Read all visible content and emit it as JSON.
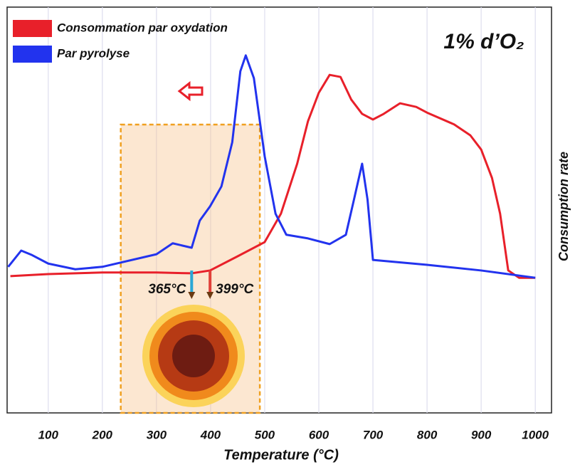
{
  "chart_data": {
    "type": "line",
    "title": "1% d’O₂",
    "x_label": "Temperature (°C)",
    "y_label": "Consumption rate",
    "xlim": [
      24,
      1030
    ],
    "xticks": [
      100,
      200,
      300,
      400,
      500,
      600,
      700,
      800,
      900,
      1000
    ],
    "ylim": [
      0,
      100
    ],
    "grid": true,
    "legend": "top-left",
    "highlight_range": [
      234,
      491
    ],
    "annotations": [
      {
        "text": "365°C",
        "x": 365,
        "color": "#2aa7d6"
      },
      {
        "text": "399°C",
        "x": 399,
        "color": "#e0403a"
      }
    ],
    "series": [
      {
        "name": "Consommation par oxydation",
        "color": "#e8202a",
        "x": [
          30,
          100,
          200,
          300,
          365,
          399,
          450,
          500,
          530,
          560,
          580,
          600,
          620,
          640,
          660,
          680,
          700,
          720,
          750,
          780,
          800,
          850,
          880,
          900,
          920,
          935,
          950,
          970,
          1000
        ],
        "values": [
          33.7,
          34.2,
          34.6,
          34.6,
          34.4,
          35.1,
          38.6,
          42.1,
          49.1,
          61.4,
          71.9,
          78.9,
          83.3,
          82.8,
          77.2,
          73.7,
          72.3,
          73.7,
          76.3,
          75.4,
          74.0,
          71.1,
          68.4,
          64.9,
          57.9,
          49.1,
          35.1,
          33.3,
          33.3
        ]
      },
      {
        "name": "Par pyrolyse",
        "color": "#2233ee",
        "x": [
          26,
          50,
          70,
          100,
          150,
          200,
          300,
          330,
          365,
          380,
          399,
          420,
          440,
          455,
          465,
          480,
          500,
          520,
          540,
          580,
          620,
          650,
          665,
          680,
          690,
          700,
          800,
          900,
          1000
        ],
        "values": [
          36.0,
          40.0,
          38.9,
          36.8,
          35.4,
          36.0,
          39.1,
          41.8,
          40.7,
          47.4,
          50.9,
          55.8,
          66.7,
          84.2,
          88.1,
          82.5,
          63.2,
          49.1,
          43.9,
          43.0,
          41.6,
          43.9,
          52.6,
          61.4,
          52.6,
          37.7,
          36.5,
          35.1,
          33.3
        ]
      }
    ]
  }
}
